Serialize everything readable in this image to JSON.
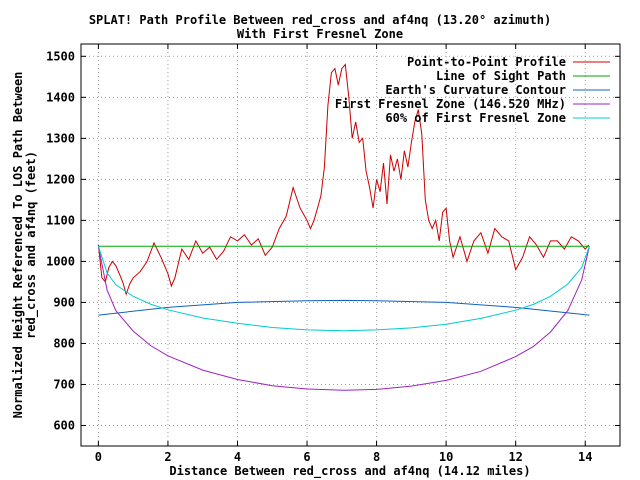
{
  "chart_data": {
    "type": "line",
    "title": "SPLAT! Path Profile Between red_cross and af4nq (13.20° azimuth)",
    "subtitle": "With First Fresnel Zone",
    "xlabel": "Distance Between red_cross and af4nq (14.12 miles)",
    "ylabel": "Normalized Height Referenced To LOS Path Between red_cross and af4nq (feet)",
    "xlim": [
      -0.5,
      15
    ],
    "ylim": [
      550,
      1530
    ],
    "x_ticks": [
      "0",
      "2",
      "4",
      "6",
      "8",
      "10",
      "12",
      "14"
    ],
    "y_ticks": [
      "600",
      "700",
      "800",
      "900",
      "1000",
      "1100",
      "1200",
      "1300",
      "1400",
      "1500"
    ],
    "grid": true,
    "legend_position": "top-right",
    "series": [
      {
        "name": "Point-to-Point Profile",
        "color": "#cc0000",
        "x": [
          0,
          0.1,
          0.2,
          0.3,
          0.4,
          0.5,
          0.6,
          0.7,
          0.8,
          0.9,
          1.0,
          1.2,
          1.4,
          1.6,
          1.8,
          2.0,
          2.1,
          2.2,
          2.4,
          2.6,
          2.8,
          3.0,
          3.2,
          3.4,
          3.6,
          3.8,
          4.0,
          4.2,
          4.4,
          4.6,
          4.8,
          5.0,
          5.2,
          5.4,
          5.6,
          5.8,
          6.0,
          6.1,
          6.2,
          6.3,
          6.4,
          6.5,
          6.6,
          6.7,
          6.8,
          6.9,
          7.0,
          7.1,
          7.2,
          7.3,
          7.4,
          7.5,
          7.6,
          7.7,
          7.8,
          7.9,
          8.0,
          8.1,
          8.2,
          8.3,
          8.4,
          8.5,
          8.6,
          8.7,
          8.8,
          8.9,
          9.0,
          9.1,
          9.2,
          9.3,
          9.4,
          9.5,
          9.6,
          9.7,
          9.8,
          9.9,
          10.0,
          10.1,
          10.2,
          10.4,
          10.6,
          10.8,
          11.0,
          11.2,
          11.4,
          11.6,
          11.8,
          12.0,
          12.2,
          12.4,
          12.6,
          12.8,
          13.0,
          13.2,
          13.4,
          13.6,
          13.8,
          14.0,
          14.1
        ],
        "y": [
          1040,
          960,
          950,
          985,
          1000,
          990,
          970,
          950,
          920,
          945,
          960,
          975,
          1000,
          1045,
          1010,
          970,
          940,
          960,
          1030,
          1005,
          1050,
          1020,
          1035,
          1005,
          1025,
          1060,
          1050,
          1065,
          1040,
          1055,
          1015,
          1035,
          1080,
          1110,
          1180,
          1130,
          1100,
          1080,
          1100,
          1130,
          1160,
          1230,
          1380,
          1460,
          1470,
          1430,
          1470,
          1480,
          1400,
          1300,
          1340,
          1290,
          1300,
          1220,
          1180,
          1130,
          1200,
          1170,
          1240,
          1140,
          1260,
          1220,
          1250,
          1200,
          1270,
          1230,
          1290,
          1340,
          1370,
          1310,
          1150,
          1100,
          1080,
          1100,
          1050,
          1120,
          1130,
          1050,
          1010,
          1060,
          1000,
          1050,
          1070,
          1020,
          1080,
          1060,
          1050,
          980,
          1010,
          1060,
          1040,
          1010,
          1050,
          1050,
          1030,
          1060,
          1050,
          1030,
          1040
        ]
      },
      {
        "name": "Line of Sight Path",
        "color": "#00aa00",
        "x": [
          0,
          14.12
        ],
        "y": [
          1037,
          1037
        ]
      },
      {
        "name": "Earth's Curvature Contour",
        "color": "#1060c0",
        "x": [
          0,
          2,
          4,
          6,
          7.06,
          8,
          10,
          12,
          14.12
        ],
        "y": [
          869,
          888,
          900,
          904,
          905,
          904,
          900,
          888,
          869
        ]
      },
      {
        "name": "First Fresnel Zone (146.520 MHz)",
        "color": "#a020c0",
        "x": [
          0,
          0.25,
          0.5,
          1,
          1.5,
          2,
          3,
          4,
          5,
          6,
          7.06,
          8,
          9,
          10,
          11,
          12,
          12.5,
          13,
          13.5,
          13.9,
          14.12
        ],
        "y": [
          1037,
          930,
          880,
          830,
          795,
          770,
          735,
          712,
          697,
          689,
          686,
          688,
          696,
          710,
          732,
          768,
          792,
          828,
          880,
          955,
          1037
        ]
      },
      {
        "name": "60% of First Fresnel Zone",
        "color": "#00cccc",
        "x": [
          0,
          0.25,
          0.5,
          1,
          1.5,
          2,
          3,
          4,
          5,
          6,
          7.06,
          8,
          9,
          10,
          11,
          12,
          12.5,
          13,
          13.5,
          13.9,
          14.12
        ],
        "y": [
          1037,
          972,
          943,
          915,
          896,
          882,
          862,
          849,
          839,
          833,
          831,
          833,
          838,
          847,
          861,
          881,
          895,
          915,
          945,
          985,
          1037
        ]
      }
    ]
  }
}
